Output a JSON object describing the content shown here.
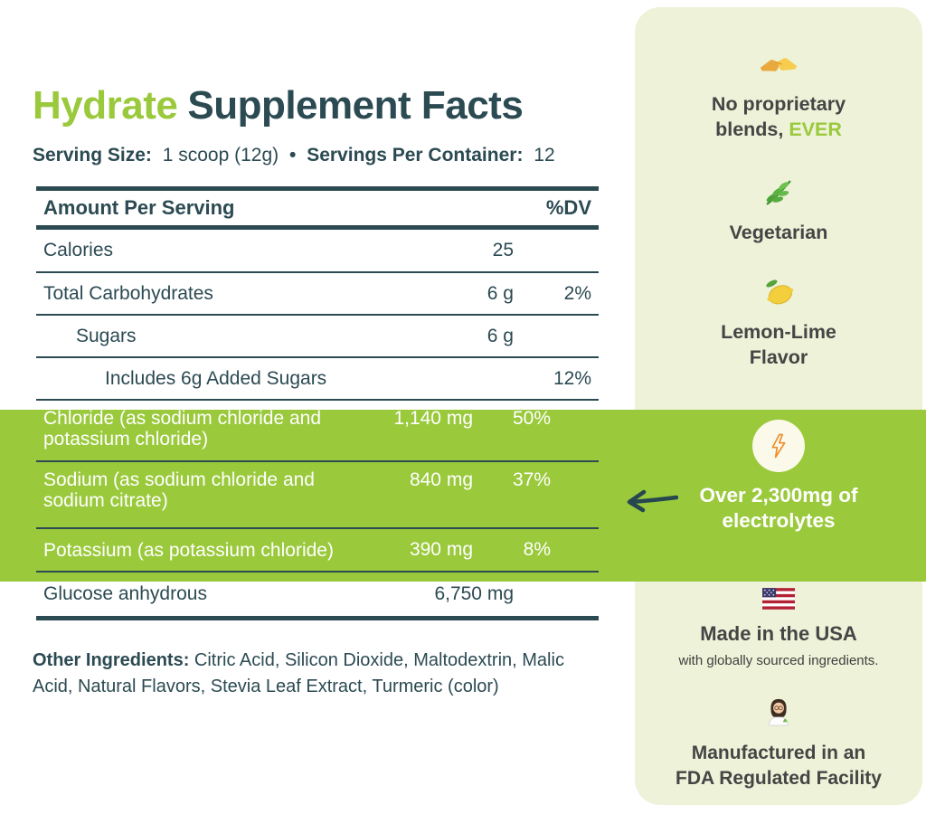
{
  "colors": {
    "lime": "#9AC93C",
    "teal": "#2B4A52",
    "panel_bg": "#EDF2D8",
    "panel_text": "#454545",
    "bolt_orange": "#ED8E2B",
    "highlight_text": "#FFFFFF"
  },
  "title": {
    "accent": "Hydrate",
    "rest": "Supplement Facts"
  },
  "serving_line": {
    "size_label": "Serving Size:",
    "size_value": "1 scoop (12g)",
    "bullet": "•",
    "container_label": "Servings Per Container:",
    "container_value": "12"
  },
  "table": {
    "col_amount": "Amount Per Serving",
    "col_dv": "%DV",
    "rows": [
      {
        "name": "Calories",
        "amount": "25",
        "dv": "",
        "sub_level": 0,
        "highlighted": false
      },
      {
        "name": "Total Carbohydrates",
        "amount": "6 g",
        "dv": "2%",
        "sub_level": 0,
        "highlighted": false
      },
      {
        "name": "Sugars",
        "amount": "6 g",
        "dv": "",
        "sub_level": 1,
        "highlighted": false
      },
      {
        "name": "Includes 6g Added Sugars",
        "amount": "",
        "dv": "12%",
        "sub_level": 2,
        "highlighted": false
      },
      {
        "name": "Chloride (as sodium chloride and potassium chloride)",
        "amount": "1,140 mg",
        "dv": "50%",
        "sub_level": 0,
        "highlighted": true
      },
      {
        "name": "Sodium (as sodium chloride and sodium citrate)",
        "amount": "840 mg",
        "dv": "37%",
        "sub_level": 0,
        "highlighted": true
      },
      {
        "name": "Potassium (as potassium chloride)",
        "amount": "390 mg",
        "dv": "8%",
        "sub_level": 0,
        "highlighted": true
      },
      {
        "name": "Glucose anhydrous",
        "amount": "6,750 mg",
        "dv": "",
        "sub_level": 0,
        "highlighted": false
      }
    ]
  },
  "other_ingredients": {
    "label": "Other Ingredients:",
    "text": "Citric Acid, Silicon Dioxide, Maltodextrin, Malic Acid, Natural Flavors, Stevia Leaf Extract, Turmeric (color)"
  },
  "panel": {
    "no_blends": {
      "icon": "handshake-icon",
      "text": "No proprietary blends,",
      "accent": "EVER"
    },
    "vegetarian": {
      "icon": "herb-icon",
      "text": "Vegetarian"
    },
    "flavor": {
      "icon": "lemon-icon",
      "text": "Lemon-Lime Flavor"
    },
    "electrolytes": {
      "icon": "lightning-icon",
      "arrow_icon": "arrow-left-icon",
      "text": "Over 2,300mg of electrolytes"
    },
    "usa": {
      "icon": "usa-flag-icon",
      "title": "Made in the USA",
      "subtitle": "with globally sourced ingredients."
    },
    "fda": {
      "icon": "scientist-icon",
      "text": "Manufactured in an FDA Regulated Facility"
    }
  }
}
